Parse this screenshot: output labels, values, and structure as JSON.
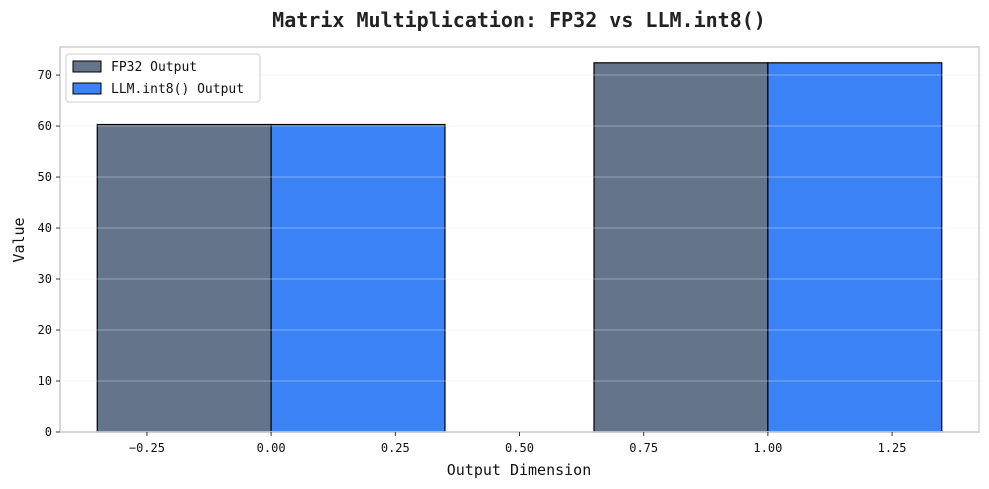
{
  "chart_data": {
    "type": "bar",
    "title": "Matrix Multiplication: FP32 vs LLM.int8()",
    "xlabel": "Output Dimension",
    "ylabel": "Value",
    "xlim": [
      -0.425,
      1.425
    ],
    "ylim": [
      0,
      75.5
    ],
    "xticks": [
      -0.25,
      0.0,
      0.25,
      0.5,
      0.75,
      1.0,
      1.25
    ],
    "xtick_labels": [
      "−0.25",
      "0.00",
      "0.25",
      "0.50",
      "0.75",
      "1.00",
      "1.25"
    ],
    "yticks": [
      0,
      10,
      20,
      30,
      40,
      50,
      60,
      70
    ],
    "ytick_labels": [
      "0",
      "10",
      "20",
      "30",
      "40",
      "50",
      "60",
      "70"
    ],
    "grid": "horizontal",
    "legend_position": "upper-left",
    "bar_width": 0.35,
    "series": [
      {
        "name": "FP32 Output",
        "color": "#64748b",
        "bars": [
          {
            "x_left": -0.35,
            "value": 60.3
          },
          {
            "x_left": 0.65,
            "value": 72.4
          }
        ]
      },
      {
        "name": "LLM.int8() Output",
        "color": "#3b82f6",
        "bars": [
          {
            "x_left": 0.0,
            "value": 60.3
          },
          {
            "x_left": 1.0,
            "value": 72.4
          }
        ]
      }
    ]
  }
}
